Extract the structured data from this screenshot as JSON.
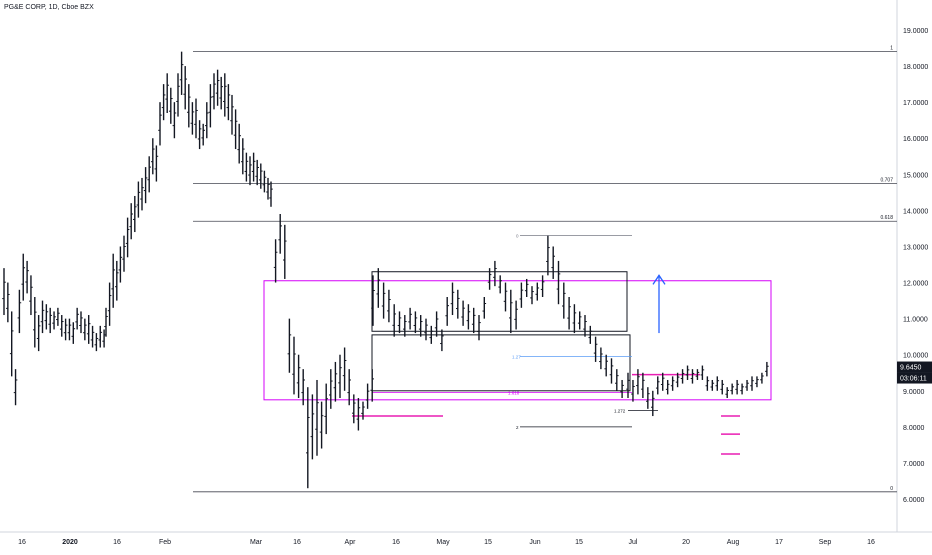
{
  "header": {
    "symbol_title": "PG&E CORP, 1D, Cboe BZX"
  },
  "price_label": {
    "value": "9.6450",
    "countdown": "03:06:11",
    "bg": "#131722",
    "fg": "#ffffff"
  },
  "colors": {
    "bars": "#131722",
    "hline": "#434651",
    "magenta": "#d500f9",
    "magenta_line": "#e91eb3",
    "blue_arrow": "#2962ff",
    "fib_blue": "#5b9cf6",
    "fib_magenta": "#d500f9"
  },
  "chart_data": {
    "type": "ohlc",
    "y_ticks": [
      "19.0000",
      "18.0000",
      "17.0000",
      "16.0000",
      "15.0000",
      "14.0000",
      "13.0000",
      "12.0000",
      "11.0000",
      "10.0000",
      "9.0000",
      "8.0000",
      "7.0000",
      "6.0000"
    ],
    "x_ticks": [
      "16",
      "2020",
      "16",
      "Feb",
      "Mar",
      "16",
      "Apr",
      "16",
      "May",
      "15",
      "Jun",
      "15",
      "Jul",
      "20",
      "Aug",
      "17",
      "Sep",
      "16"
    ],
    "x_ticks_bold": [
      "2020"
    ],
    "ylim": [
      5.5,
      19.5
    ],
    "fib_levels_right": [
      {
        "label": "1",
        "value": 18.4
      },
      {
        "label": "0.707",
        "value": 14.75
      },
      {
        "label": "0.618",
        "value": 13.7
      },
      {
        "label": "0",
        "value": 6.2
      }
    ],
    "fib_levels_inner": [
      {
        "label": "0",
        "value": 13.3
      },
      {
        "label": "1.27",
        "value": 9.95
      },
      {
        "label": "1.618",
        "value": 8.95
      },
      {
        "label": "1.272",
        "value": 8.45
      },
      {
        "label": "2",
        "value": 8.0
      }
    ],
    "series": [
      {
        "values": [
          [
            12.4,
            11.1
          ],
          [
            12.0,
            10.9
          ],
          [
            11.2,
            9.4
          ],
          [
            9.6,
            8.6
          ],
          [
            11.8,
            10.6
          ],
          [
            12.8,
            11.5
          ],
          [
            12.6,
            11.7
          ],
          [
            12.2,
            11.1
          ],
          [
            11.6,
            10.2
          ],
          [
            11.1,
            10.1
          ],
          [
            11.5,
            10.6
          ],
          [
            11.4,
            10.7
          ],
          [
            11.3,
            10.6
          ],
          [
            11.2,
            10.7
          ],
          [
            11.3,
            10.8
          ],
          [
            11.1,
            10.5
          ],
          [
            11.0,
            10.4
          ],
          [
            11.0,
            10.4
          ],
          [
            10.9,
            10.3
          ],
          [
            11.3,
            10.7
          ],
          [
            11.2,
            10.6
          ],
          [
            11.0,
            10.4
          ],
          [
            11.1,
            10.3
          ],
          [
            10.8,
            10.2
          ],
          [
            10.6,
            10.1
          ],
          [
            10.8,
            10.2
          ],
          [
            10.7,
            10.2
          ]
        ]
      },
      {
        "values": [
          [
            11.3,
            10.5
          ],
          [
            12.0,
            10.8
          ],
          [
            12.8,
            11.3
          ],
          [
            12.6,
            11.5
          ],
          [
            13.0,
            12.0
          ],
          [
            13.3,
            12.3
          ],
          [
            13.8,
            12.7
          ],
          [
            14.2,
            13.2
          ],
          [
            14.4,
            13.4
          ],
          [
            14.8,
            13.8
          ],
          [
            14.9,
            14.0
          ],
          [
            15.2,
            14.2
          ],
          [
            15.5,
            14.5
          ],
          [
            16.0,
            15.0
          ],
          [
            15.8,
            14.8
          ],
          [
            17.0,
            15.8
          ],
          [
            17.5,
            16.5
          ],
          [
            17.8,
            16.7
          ],
          [
            17.4,
            16.4
          ],
          [
            17.0,
            16.0
          ],
          [
            17.8,
            16.6
          ],
          [
            18.4,
            17.2
          ],
          [
            18.0,
            16.8
          ],
          [
            17.5,
            16.3
          ],
          [
            17.0,
            16.1
          ],
          [
            17.1,
            16.0
          ],
          [
            16.5,
            15.7
          ],
          [
            16.4,
            15.8
          ],
          [
            17.0,
            16.0
          ],
          [
            17.5,
            16.3
          ],
          [
            17.8,
            16.8
          ],
          [
            17.9,
            16.9
          ],
          [
            17.7,
            16.8
          ],
          [
            17.8,
            16.6
          ],
          [
            17.5,
            16.5
          ],
          [
            17.2,
            16.1
          ],
          [
            16.8,
            15.7
          ],
          [
            16.4,
            15.3
          ],
          [
            16.0,
            15.0
          ],
          [
            15.6,
            14.8
          ],
          [
            15.5,
            14.7
          ],
          [
            15.6,
            14.8
          ],
          [
            15.4,
            14.7
          ],
          [
            15.3,
            14.6
          ],
          [
            15.1,
            14.5
          ],
          [
            14.9,
            14.3
          ]
        ]
      },
      {
        "values": [
          [
            14.8,
            14.1
          ],
          [
            13.2,
            12.0
          ],
          [
            13.9,
            12.8
          ],
          [
            13.6,
            12.1
          ],
          [
            11.0,
            9.5
          ],
          [
            10.5,
            8.9
          ],
          [
            10.0,
            8.8
          ],
          [
            9.6,
            8.6
          ],
          [
            9.1,
            6.3
          ],
          [
            8.9,
            7.1
          ],
          [
            9.3,
            7.2
          ],
          [
            8.7,
            7.4
          ],
          [
            9.2,
            7.8
          ],
          [
            9.6,
            8.5
          ],
          [
            9.8,
            8.7
          ],
          [
            10.0,
            8.8
          ],
          [
            10.2,
            9.0
          ],
          [
            9.6,
            8.6
          ],
          [
            8.9,
            8.1
          ],
          [
            8.8,
            7.9
          ],
          [
            8.7,
            8.2
          ],
          [
            9.2,
            8.5
          ],
          [
            9.6,
            8.7
          ]
        ]
      },
      {
        "values": [
          [
            12.2,
            10.8
          ],
          [
            12.4,
            11.3
          ],
          [
            12.0,
            11.0
          ],
          [
            11.8,
            10.9
          ],
          [
            11.4,
            10.5
          ],
          [
            11.2,
            10.6
          ],
          [
            11.1,
            10.5
          ],
          [
            11.3,
            10.7
          ],
          [
            11.2,
            10.6
          ],
          [
            11.1,
            10.5
          ],
          [
            11.0,
            10.4
          ],
          [
            10.8,
            10.3
          ],
          [
            11.2,
            10.5
          ],
          [
            10.7,
            10.1
          ],
          [
            11.6,
            10.8
          ],
          [
            12.0,
            11.1
          ],
          [
            11.8,
            11.0
          ],
          [
            11.5,
            10.8
          ],
          [
            11.4,
            10.7
          ],
          [
            11.3,
            10.6
          ],
          [
            11.1,
            10.4
          ],
          [
            11.6,
            11.0
          ],
          [
            12.4,
            11.8
          ],
          [
            12.6,
            11.9
          ],
          [
            12.2,
            11.7
          ],
          [
            12.0,
            11.2
          ],
          [
            11.8,
            10.6
          ],
          [
            11.5,
            10.7
          ],
          [
            12.0,
            11.3
          ],
          [
            12.1,
            11.6
          ],
          [
            11.9,
            11.4
          ],
          [
            12.0,
            11.5
          ],
          [
            12.2,
            11.6
          ],
          [
            13.3,
            12.2
          ],
          [
            13.0,
            12.1
          ],
          [
            12.6,
            11.4
          ],
          [
            12.0,
            11.0
          ],
          [
            11.6,
            10.7
          ],
          [
            11.4,
            10.6
          ],
          [
            11.2,
            10.7
          ],
          [
            11.1,
            10.5
          ],
          [
            10.8,
            10.3
          ],
          [
            10.5,
            9.8
          ],
          [
            10.2,
            9.6
          ],
          [
            10.0,
            9.4
          ],
          [
            9.9,
            9.2
          ],
          [
            9.6,
            9.0
          ],
          [
            9.3,
            8.8
          ]
        ]
      },
      {
        "values": [
          [
            9.5,
            8.8
          ],
          [
            9.3,
            8.7
          ],
          [
            9.6,
            8.9
          ],
          [
            9.5,
            8.8
          ],
          [
            9.1,
            8.5
          ],
          [
            9.0,
            8.3
          ],
          [
            9.4,
            8.9
          ],
          [
            9.5,
            9.0
          ],
          [
            9.3,
            8.9
          ],
          [
            9.4,
            9.0
          ],
          [
            9.5,
            9.1
          ],
          [
            9.6,
            9.2
          ],
          [
            9.7,
            9.3
          ],
          [
            9.6,
            9.2
          ],
          [
            9.6,
            9.3
          ],
          [
            9.7,
            9.3
          ],
          [
            9.4,
            9.0
          ],
          [
            9.3,
            9.0
          ],
          [
            9.4,
            9.0
          ],
          [
            9.3,
            8.9
          ],
          [
            9.1,
            8.8
          ],
          [
            9.2,
            8.9
          ],
          [
            9.3,
            8.9
          ],
          [
            9.2,
            8.9
          ],
          [
            9.3,
            9.0
          ],
          [
            9.4,
            9.0
          ],
          [
            9.4,
            9.1
          ],
          [
            9.5,
            9.2
          ],
          [
            9.8,
            9.4
          ]
        ]
      }
    ]
  }
}
